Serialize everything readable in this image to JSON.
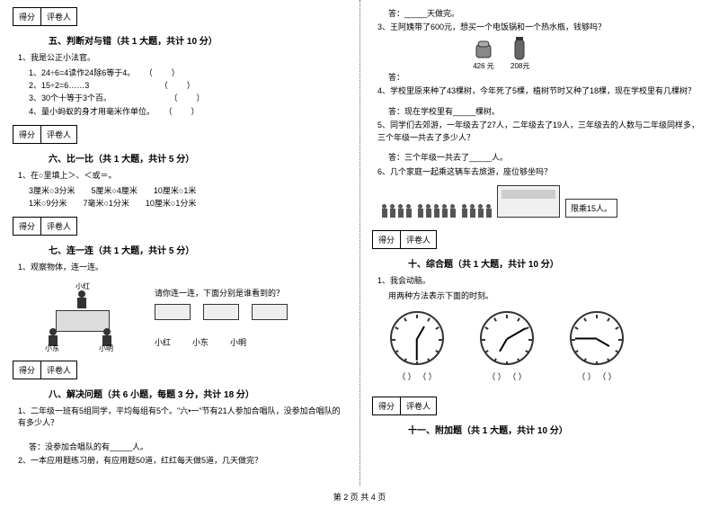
{
  "footer": "第 2 页  共 4 页",
  "scorebox": {
    "score": "得分",
    "reviewer": "评卷人"
  },
  "left": {
    "s5": {
      "title": "五、判断对与错（共 1 大题，共计 10 分）",
      "lead": "1、我是公正小法官。",
      "items": [
        "1、24÷6=4读作24除6等于4。",
        "2、15÷2=6……3",
        "3、30个十等于3个百。",
        "4、量小蚂蚁的身才用毫米作单位。"
      ]
    },
    "s6": {
      "title": "六、比一比（共 1 大题，共计 5 分）",
      "lead": "1、在○里填上＞、＜或＝。",
      "r1a": "3厘米○3分米",
      "r1b": "5厘米○4厘米",
      "r1c": "10厘米○1米",
      "r2a": "1米○9分米",
      "r2b": "7毫米○1分米",
      "r2c": "10厘米○1分米"
    },
    "s7": {
      "title": "七、连一连（共 1 大题，共计 5 分）",
      "lead": "1、观察物体，连一连。",
      "prompt": "请你连一连，下面分别是谁看到的？",
      "names": {
        "top": "小红",
        "bl": "小东",
        "br": "小明"
      },
      "views": [
        "小红",
        "小东",
        "小明"
      ]
    },
    "s8": {
      "title": "八、解决问题（共 6 小题，每题 3 分，共计 18 分）",
      "q1": "1、二年级一班有5组同学，平均每组有5个。\"六•一\"节有21人参加合唱队，没参加合唱队的有多少人？",
      "a1": "答：没参加合唱队的有_____人。",
      "q2": "2、一本应用题练习册，有应用题50道，红红每天做5道，几天做完？"
    }
  },
  "right": {
    "a2": "答：_____天做完。",
    "q3": "3、王阿姨带了600元，想买一个电饭锅和一个热水瓶，钱够吗？",
    "price1": "426 元",
    "price2": "208元",
    "a3": "答：",
    "q4": "4、学校里原来种了43棵树，今年死了5棵，植树节时又种了18棵，现在学校里有几棵树？",
    "a4": "答：现在学校里有_____棵树。",
    "q5": "5、同学们去郊游，一年级去了27人，二年级去了19人，三年级去的人数与二年级同样多，三个年级一共去了多少人？",
    "a5": "答：三个年级一共去了_____人。",
    "q6": "6、几个家庭一起乘这辆车去旅游，座位够坐吗？",
    "limit": "限乘15人。",
    "s10": {
      "title": "十、综合题（共 1 大题，共计 10 分）",
      "lead": "1、我会动脑。",
      "sub": "用两种方法表示下面的时刻。"
    },
    "clock_ans": "（        ）   （        ）",
    "s11": {
      "title": "十一、附加题（共 1 大题，共计 10 分）"
    },
    "clocks": [
      {
        "h": -60,
        "m": 90
      },
      {
        "h": 120,
        "m": -30
      },
      {
        "h": 30,
        "m": 180
      }
    ]
  }
}
